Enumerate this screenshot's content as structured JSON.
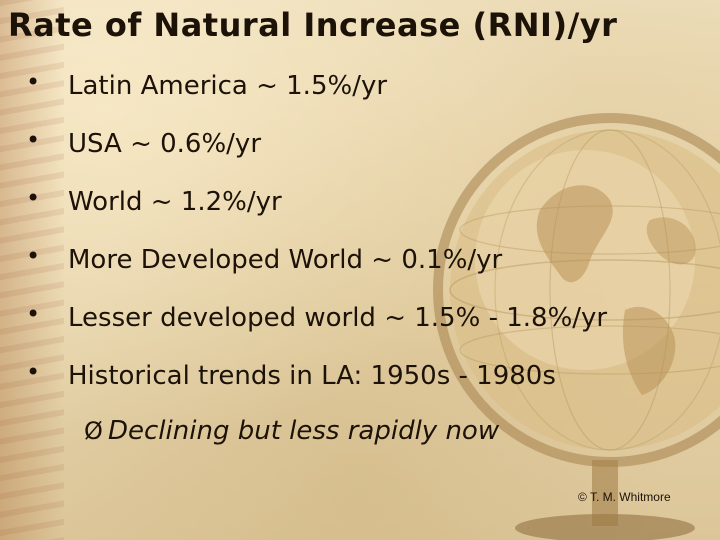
{
  "slide": {
    "title": "Rate of Natural Increase (RNI)/yr",
    "bullet_symbol": "•",
    "bullets": [
      "Latin America ~ 1.5%/yr",
      "USA ~ 0.6%/yr",
      "World ~ 1.2%/yr",
      "More Developed World ~ 0.1%/yr",
      "Lesser developed world ~ 1.5% - 1.8%/yr",
      "Historical trends in LA: 1950s - 1980s"
    ],
    "sub_bullet_symbol": "Ø",
    "sub_bullet": "Declining but less rapidly now",
    "copyright": "© T. M. Whitmore"
  },
  "background": {
    "parchment_color": "#e8d9b5",
    "text_color": "#1c1208",
    "decor_icon": "antique-globe-icon"
  }
}
